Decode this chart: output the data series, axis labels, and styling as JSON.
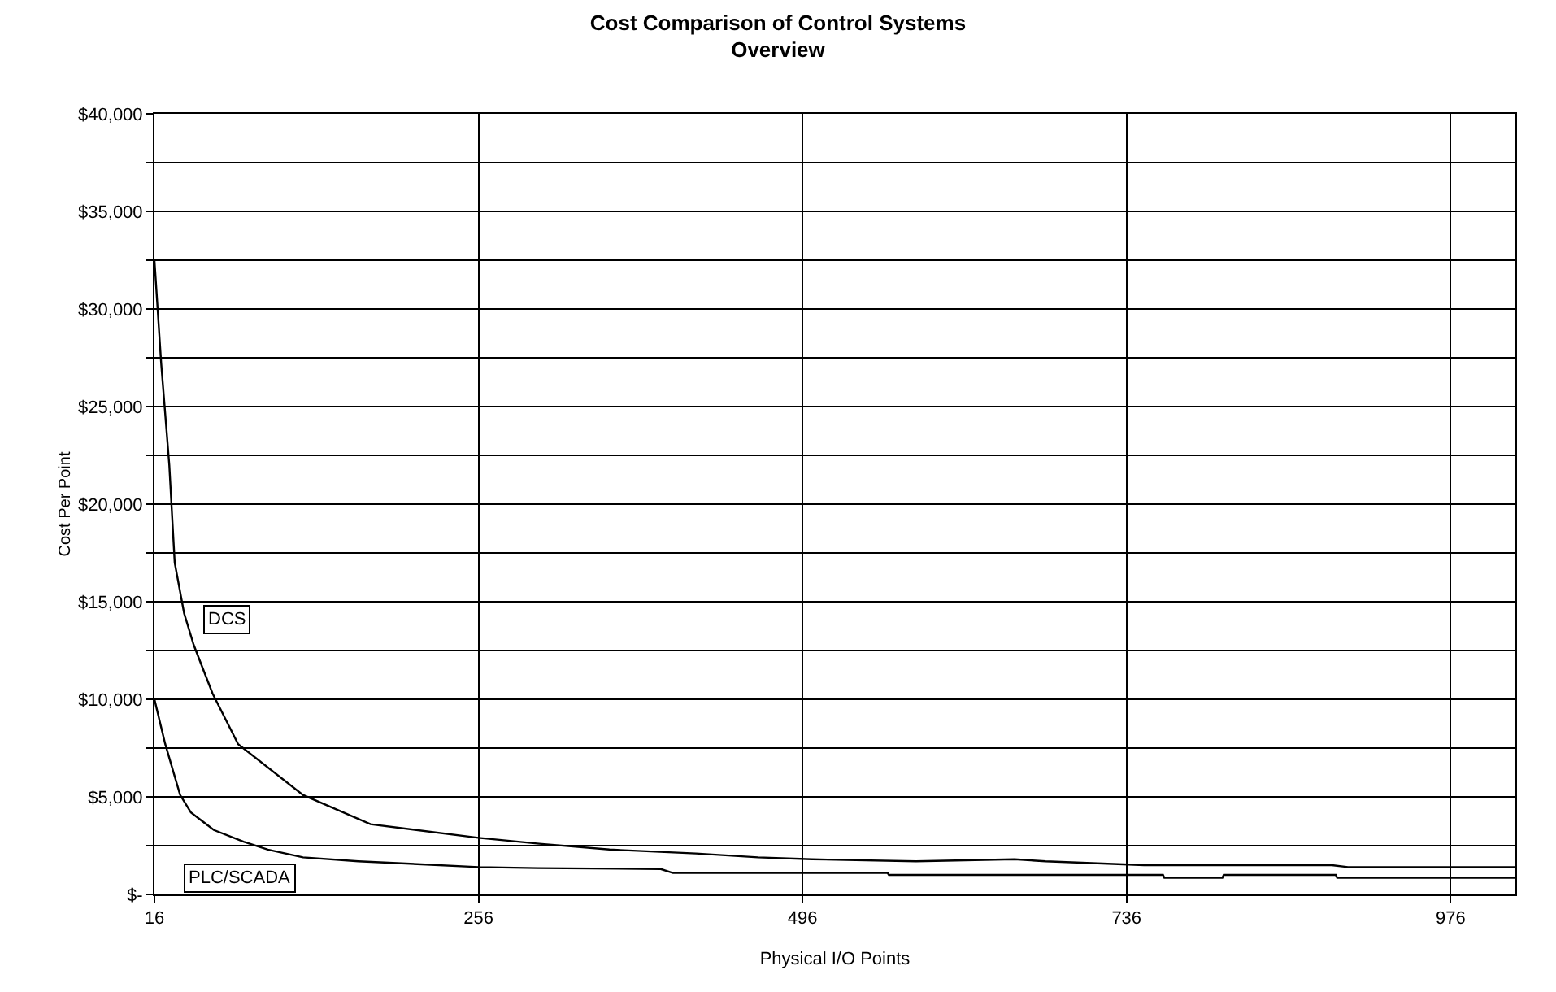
{
  "chart_data": {
    "type": "line",
    "title": "Cost Comparison of Control Systems",
    "subtitle": "Overview",
    "xlabel": "Physical I/O Points",
    "ylabel": "Cost Per Point",
    "xlim": [
      16,
      1024
    ],
    "xticks": [
      16,
      256,
      496,
      736,
      976
    ],
    "ylim": [
      0,
      40000
    ],
    "yticks": [
      {
        "value": 0,
        "label": "$-"
      },
      {
        "value": 2500,
        "label": null
      },
      {
        "value": 5000,
        "label": "$5,000"
      },
      {
        "value": 7500,
        "label": null
      },
      {
        "value": 10000,
        "label": "$10,000"
      },
      {
        "value": 12500,
        "label": null
      },
      {
        "value": 15000,
        "label": "$15,000"
      },
      {
        "value": 17500,
        "label": null
      },
      {
        "value": 20000,
        "label": "$20,000"
      },
      {
        "value": 22500,
        "label": null
      },
      {
        "value": 25000,
        "label": "$25,000"
      },
      {
        "value": 27500,
        "label": null
      },
      {
        "value": 30000,
        "label": "$30,000"
      },
      {
        "value": 32500,
        "label": null
      },
      {
        "value": 35000,
        "label": "$35,000"
      },
      {
        "value": 37500,
        "label": null
      },
      {
        "value": 40000,
        "label": "$40,000"
      }
    ],
    "grid": true,
    "legend": false,
    "marker": "none",
    "line_style": "solid",
    "series": [
      {
        "name": "DCS",
        "color": "#000000",
        "x": [
          16,
          21,
          27,
          31,
          38,
          45,
          59,
          78,
          126,
          176,
          256,
          301,
          353,
          417,
          463,
          503,
          580,
          653,
          676,
          749,
          888,
          900,
          1024
        ],
        "values": [
          32500,
          27200,
          22000,
          17000,
          14400,
          12800,
          10300,
          7700,
          5100,
          3600,
          2900,
          2600,
          2300,
          2100,
          1900,
          1800,
          1700,
          1800,
          1700,
          1500,
          1500,
          1400,
          1400
        ]
      },
      {
        "name": "PLC/SCADA",
        "color": "#000000",
        "x": [
          16,
          24,
          35,
          43,
          60,
          82,
          100,
          126,
          167,
          256,
          300,
          391,
          400,
          559,
          560,
          763,
          764,
          807,
          808,
          891,
          892,
          1024
        ],
        "values": [
          10000,
          7700,
          5100,
          4200,
          3300,
          2700,
          2300,
          1900,
          1700,
          1400,
          1350,
          1300,
          1100,
          1100,
          1000,
          1000,
          850,
          850,
          1000,
          1000,
          850,
          850
        ]
      }
    ]
  }
}
